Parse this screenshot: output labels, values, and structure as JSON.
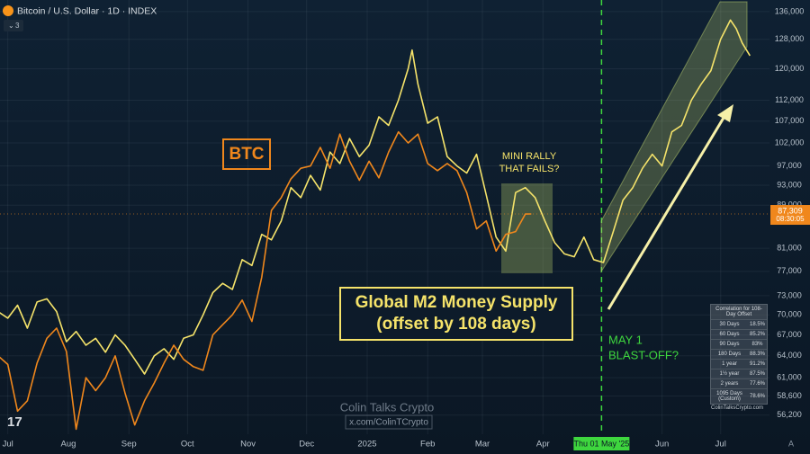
{
  "header": {
    "symbol": "Bitcoin / U.S. Dollar · 1D · INDEX",
    "indicator_count": "3"
  },
  "chart_data": {
    "type": "line",
    "log": true,
    "grid": true,
    "xlim": [
      -4,
      390
    ],
    "ylim": [
      53900,
      139500
    ],
    "xticks": [
      {
        "value": 0,
        "label": "Jul"
      },
      {
        "value": 31,
        "label": "Aug"
      },
      {
        "value": 62,
        "label": "Sep"
      },
      {
        "value": 92,
        "label": "Oct"
      },
      {
        "value": 123,
        "label": "Nov"
      },
      {
        "value": 153,
        "label": "Dec"
      },
      {
        "value": 184,
        "label": "2025"
      },
      {
        "value": 215,
        "label": "Feb"
      },
      {
        "value": 243,
        "label": "Mar"
      },
      {
        "value": 274,
        "label": "Apr"
      },
      {
        "value": 335,
        "label": "Jun"
      },
      {
        "value": 365,
        "label": "Jul"
      }
    ],
    "marker_date": {
      "value": 304,
      "label": "Thu 01 May '25"
    },
    "yticks": [
      {
        "value": 136000,
        "label": "136,000"
      },
      {
        "value": 128000,
        "label": "128,000"
      },
      {
        "value": 120000,
        "label": "120,000"
      },
      {
        "value": 112000,
        "label": "112,000"
      },
      {
        "value": 107000,
        "label": "107,000"
      },
      {
        "value": 102000,
        "label": "102,000"
      },
      {
        "value": 97000,
        "label": "97,000"
      },
      {
        "value": 93000,
        "label": "93,000"
      },
      {
        "value": 89000,
        "label": "89,000"
      },
      {
        "value": 81000,
        "label": "81,000"
      },
      {
        "value": 77000,
        "label": "77,000"
      },
      {
        "value": 73000,
        "label": "73,000"
      },
      {
        "value": 70000,
        "label": "70,000"
      },
      {
        "value": 67000,
        "label": "67,000"
      },
      {
        "value": 64000,
        "label": "64,000"
      },
      {
        "value": 61000,
        "label": "61,000"
      },
      {
        "value": 58600,
        "label": "58,600"
      },
      {
        "value": 56200,
        "label": "56,200"
      }
    ],
    "last_price": {
      "value": 87309,
      "label": "87,309",
      "timer": "08:30:05"
    },
    "series": [
      {
        "color": "#f5e36a",
        "x": [
          -5,
          0,
          5,
          10,
          15,
          20,
          25,
          30,
          35,
          40,
          45,
          50,
          55,
          60,
          65,
          70,
          75,
          80,
          85,
          90,
          95,
          100,
          105,
          110,
          115,
          120,
          125,
          130,
          135,
          140,
          145,
          150,
          155,
          160,
          165,
          170,
          175,
          180,
          185,
          190,
          195,
          200,
          205,
          207,
          210,
          215,
          220,
          225,
          230,
          235,
          240,
          245,
          250,
          255,
          260,
          265,
          270,
          275,
          280,
          285,
          290,
          295,
          300,
          305,
          310,
          315,
          320,
          325,
          330,
          335,
          340,
          345,
          350,
          355,
          360,
          365,
          370,
          373,
          376,
          380
        ],
        "values": [
          70500,
          69500,
          71500,
          68000,
          72000,
          72500,
          70500,
          66000,
          67500,
          65500,
          66500,
          64500,
          67000,
          65500,
          63500,
          61500,
          64000,
          65000,
          63500,
          66500,
          67000,
          70000,
          73500,
          75000,
          74000,
          79000,
          78000,
          83500,
          82500,
          86000,
          92500,
          90500,
          95000,
          92000,
          100000,
          97500,
          103000,
          99000,
          101500,
          108000,
          106000,
          112000,
          120000,
          125000,
          116000,
          106500,
          108000,
          99000,
          97000,
          95500,
          99500,
          91000,
          83000,
          80500,
          91500,
          92500,
          90500,
          86000,
          82000,
          80000,
          79500,
          83000,
          79000,
          78500,
          84000,
          90000,
          92500,
          96500,
          99500,
          97000,
          104500,
          106000,
          112000,
          116000,
          119500,
          128000,
          133500,
          131000,
          127000,
          123500
        ]
      },
      {
        "color": "#f0871c",
        "x": [
          -5,
          0,
          5,
          10,
          15,
          20,
          25,
          30,
          35,
          40,
          45,
          50,
          55,
          60,
          65,
          70,
          75,
          80,
          85,
          90,
          95,
          100,
          105,
          110,
          115,
          120,
          125,
          130,
          135,
          140,
          145,
          150,
          155,
          160,
          165,
          170,
          175,
          180,
          185,
          190,
          195,
          200,
          205,
          210,
          215,
          220,
          225,
          230,
          235,
          240,
          245,
          250,
          255,
          260,
          265,
          268
        ],
        "values": [
          64000,
          62800,
          56700,
          58000,
          63000,
          66500,
          68000,
          64600,
          54500,
          61000,
          59300,
          61000,
          64000,
          59000,
          55000,
          58000,
          60300,
          63000,
          65500,
          63500,
          62500,
          62000,
          67000,
          68500,
          70000,
          72300,
          69000,
          76000,
          88000,
          90500,
          94300,
          96500,
          97000,
          101000,
          96500,
          104000,
          98000,
          94000,
          98000,
          94500,
          100000,
          104500,
          102000,
          104000,
          97500,
          96000,
          97500,
          96000,
          91500,
          84500,
          86000,
          80500,
          83500,
          84000,
          87300,
          87309
        ]
      }
    ],
    "annotations": {
      "btc": "BTC",
      "mini_rally": [
        "MINI RALLY",
        "THAT FAILS?"
      ],
      "m2": [
        "Global M2 Money Supply",
        "(offset by 108 days)"
      ],
      "blast_off": [
        "MAY 1",
        "BLAST-OFF?"
      ],
      "watermark": "Colin Talks Crypto",
      "handle": "x.com/ColinTCrypto"
    }
  },
  "correlation": {
    "title": "Correlation for 108-Day Offset",
    "rows": [
      [
        "30 Days",
        "18.5%"
      ],
      [
        "60 Days",
        "85.2%"
      ],
      [
        "90 Days",
        "83%"
      ],
      [
        "180 Days",
        "88.3%"
      ],
      [
        "1 year",
        "91.2%"
      ],
      [
        "1½ year",
        "87.5%"
      ],
      [
        "2 years",
        "77.6%"
      ],
      [
        "1095 Days (Custom)",
        "78.6%"
      ]
    ],
    "site": "ColinTalksCrypto.com"
  },
  "auto_button": "A"
}
